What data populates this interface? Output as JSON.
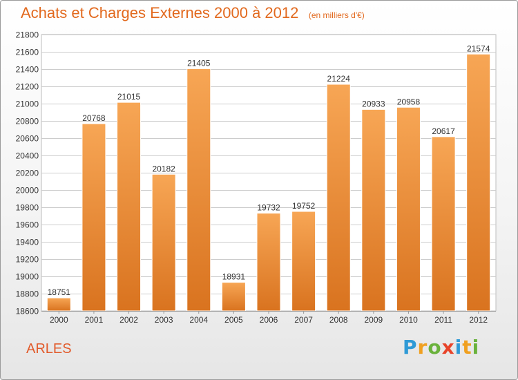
{
  "title": "Achats et Charges Externes 2000 à 2012",
  "subtitle": "(en milliers d'€)",
  "city": "ARLES",
  "logo": {
    "text": "Proxiti",
    "letters": [
      {
        "char": "P",
        "color": "#2f9ad6"
      },
      {
        "char": "r",
        "color": "#f0a020"
      },
      {
        "char": "o",
        "color": "#6ab23c"
      },
      {
        "char": "x",
        "color": "#e8442a"
      },
      {
        "char": "i",
        "color": "#2f9ad6"
      },
      {
        "char": "t",
        "color": "#f0a020"
      },
      {
        "char": "i",
        "color": "#6ab23c"
      }
    ]
  },
  "colors": {
    "bar_top": "#f7a655",
    "bar_bottom": "#d9731f",
    "title": "#e2691e",
    "grid": "#cccccc"
  },
  "chart_data": {
    "type": "bar",
    "title": "Achats et Charges Externes 2000 à 2012",
    "subtitle": "(en milliers d'€)",
    "categories": [
      "2000",
      "2001",
      "2002",
      "2003",
      "2004",
      "2005",
      "2006",
      "2007",
      "2008",
      "2009",
      "2010",
      "2011",
      "2012"
    ],
    "values": [
      18751,
      20768,
      21015,
      20182,
      21405,
      18931,
      19732,
      19752,
      21224,
      20933,
      20958,
      20617,
      21574
    ],
    "ylim": [
      18600,
      21800
    ],
    "yticks": [
      18600,
      18800,
      19000,
      19200,
      19400,
      19600,
      19800,
      20000,
      20200,
      20400,
      20600,
      20800,
      21000,
      21200,
      21400,
      21600,
      21800
    ],
    "grid": true,
    "data_labels": true
  }
}
